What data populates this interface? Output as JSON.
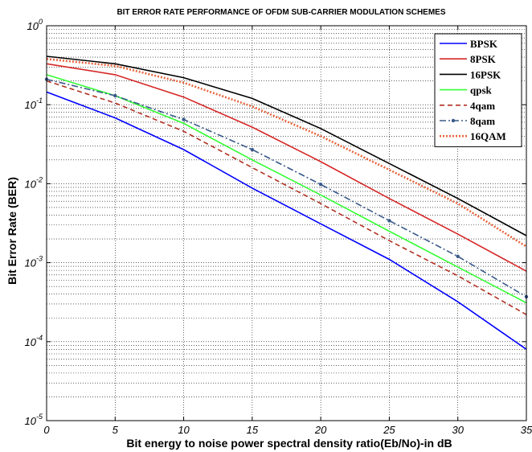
{
  "chart_data": {
    "type": "line",
    "title": "BIT ERROR RATE PERFORMANCE OF OFDM SUB-CARRIER MODULATION SCHEMES",
    "xlabel": "Bit energy to noise power spectral density ratio(Eb/No)-in dB",
    "ylabel": "Bit Error Rate (BER)",
    "xlim": [
      0,
      35
    ],
    "ylim": [
      1e-05,
      1
    ],
    "yscale": "log",
    "x_ticks": [
      "0",
      "5",
      "10",
      "15",
      "20",
      "25",
      "30",
      "35"
    ],
    "y_tick_base": "10",
    "y_tick_exponents": [
      "0",
      "-1",
      "-2",
      "-3",
      "-4",
      "-5"
    ],
    "grid": true,
    "legend_position": "top-right",
    "x": [
      0,
      5,
      10,
      15,
      20,
      25,
      30,
      35
    ],
    "series": [
      {
        "name": "BPSK",
        "color": "#0000ff",
        "style": "solid",
        "values": [
          0.145,
          0.068,
          0.027,
          0.0088,
          0.0031,
          0.0011,
          0.00032,
          8e-05
        ]
      },
      {
        "name": "8PSK",
        "color": "#d62728",
        "style": "solid",
        "values": [
          0.33,
          0.24,
          0.125,
          0.052,
          0.019,
          0.0065,
          0.0023,
          0.00078
        ]
      },
      {
        "name": "16PSK",
        "color": "#000000",
        "style": "solid",
        "values": [
          0.41,
          0.33,
          0.22,
          0.12,
          0.05,
          0.018,
          0.0065,
          0.0022
        ]
      },
      {
        "name": "qpsk",
        "color": "#33ff33",
        "style": "solid",
        "values": [
          0.24,
          0.13,
          0.058,
          0.02,
          0.0072,
          0.0025,
          0.00088,
          0.00031
        ]
      },
      {
        "name": "4qam",
        "color": "#b03020",
        "style": "dashed",
        "values": [
          0.2,
          0.105,
          0.046,
          0.016,
          0.0056,
          0.0019,
          0.00068,
          0.00022
        ]
      },
      {
        "name": "8qam",
        "color": "#3a5a8a",
        "style": "dash-dot-marker",
        "values": [
          0.21,
          0.13,
          0.065,
          0.027,
          0.0098,
          0.0034,
          0.0012,
          0.00037
        ]
      },
      {
        "name": "16QAM",
        "color": "#e8663e",
        "style": "dotted",
        "values": [
          0.38,
          0.31,
          0.19,
          0.095,
          0.04,
          0.015,
          0.0056,
          0.0016
        ]
      }
    ]
  }
}
